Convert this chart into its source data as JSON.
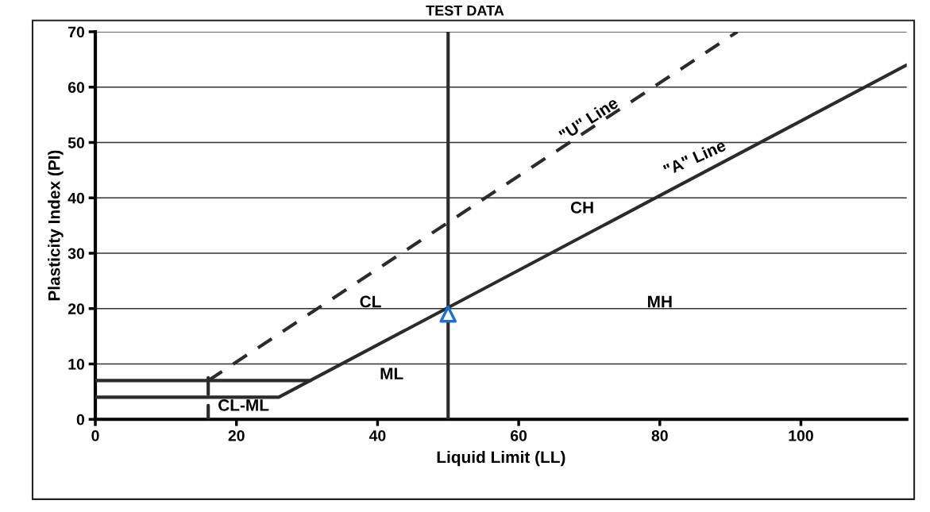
{
  "chart_data": {
    "type": "line",
    "title": "TEST DATA",
    "xlabel": "Liquid Limit (LL)",
    "ylabel": "Plasticity Index (PI)",
    "series": [
      {
        "x": [
          0,
          26,
          115
        ],
        "values": [
          4,
          4,
          64
        ],
        "color": "#2b2b2b",
        "line_style": "solid"
      },
      {
        "x": [
          0,
          30.5
        ],
        "values": [
          7,
          7
        ],
        "color": "#2b2b2b",
        "line_style": "solid"
      },
      {
        "x": [
          16,
          91
        ],
        "values": [
          7,
          70
        ],
        "color": "#2b2b2b",
        "line_style": "dashed"
      },
      {
        "x": [
          16,
          16
        ],
        "values": [
          0,
          2.5
        ],
        "color": "#2b2b2b",
        "line_style": "solid"
      },
      {
        "x": [
          16,
          16
        ],
        "values": [
          4.5,
          7.5
        ],
        "color": "#2b2b2b",
        "line_style": "solid"
      },
      {
        "type": "scatter",
        "x": [
          50
        ],
        "values": [
          19
        ],
        "color": "#1f6fd0",
        "marker": "triangle"
      }
    ],
    "ref_lines": [
      {
        "axis": "x",
        "value": 50,
        "color": "#2b2b2b"
      }
    ],
    "annotations": [
      "\"U\" Line",
      "\"A\" Line",
      "CH",
      "CL",
      "MH",
      "ML",
      "CL-ML"
    ],
    "xlim": [
      0,
      115
    ],
    "xticks": [
      0,
      20,
      40,
      60,
      80,
      100
    ],
    "ylim": [
      0,
      70
    ],
    "yticks": [
      0,
      10,
      20,
      30,
      40,
      50,
      60,
      70
    ],
    "grid": "y"
  }
}
